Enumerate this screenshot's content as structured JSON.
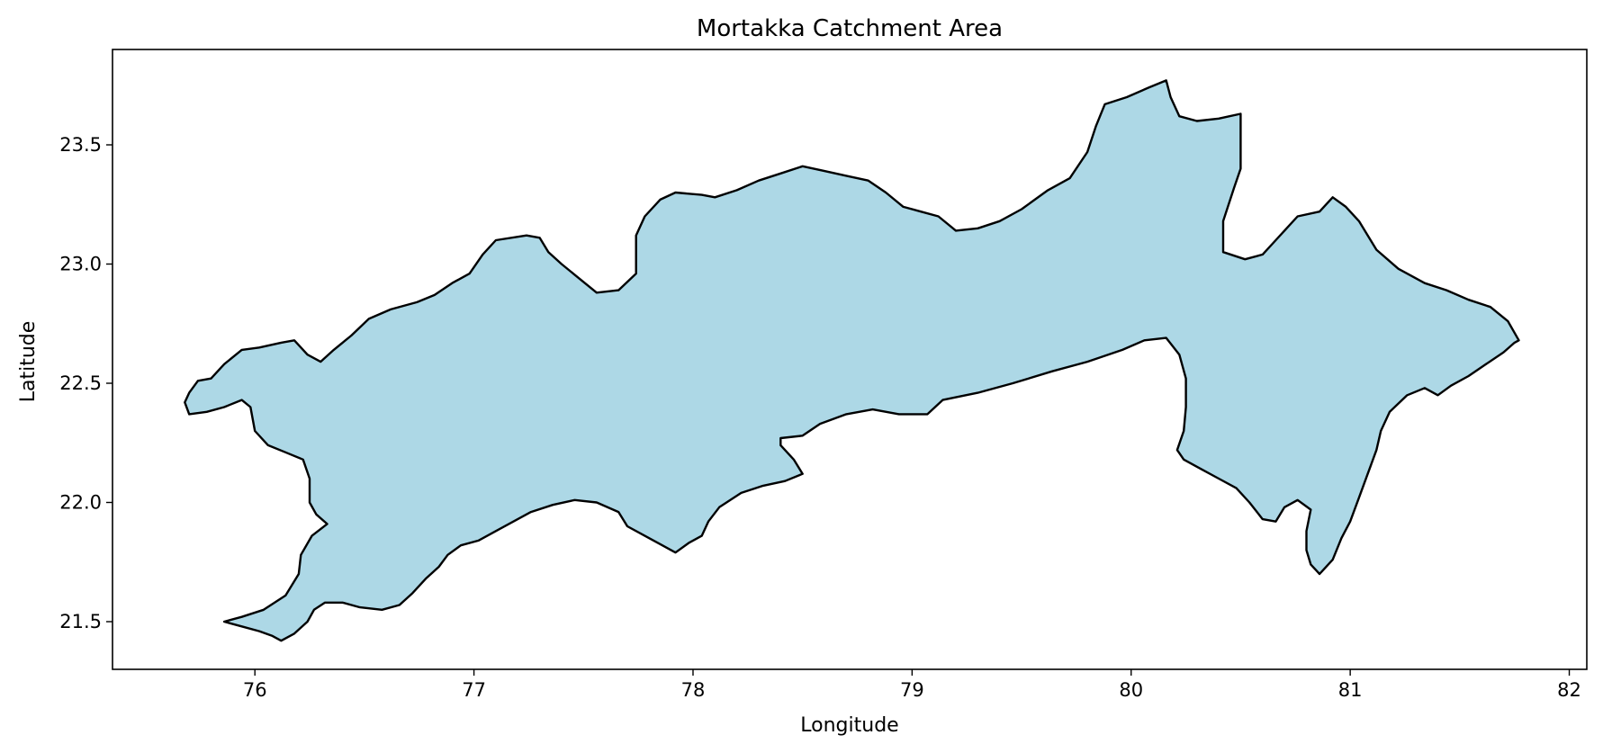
{
  "chart_data": {
    "type": "map",
    "title": "Mortakka Catchment Area",
    "xlabel": "Longitude",
    "ylabel": "Latitude",
    "xlim": [
      75.35,
      82.08
    ],
    "ylim": [
      21.3,
      23.9
    ],
    "x_ticks": [
      76,
      77,
      78,
      79,
      80,
      81,
      82
    ],
    "y_ticks": [
      21.5,
      22.0,
      22.5,
      23.0,
      23.5
    ],
    "x_tick_labels": [
      "76",
      "77",
      "78",
      "79",
      "80",
      "81",
      "82"
    ],
    "y_tick_labels": [
      "21.5",
      "22.0",
      "22.5",
      "23.0",
      "23.5"
    ],
    "grid": false,
    "colors": {
      "fill": "#add8e6",
      "edge": "#000000"
    },
    "polygon": [
      [
        75.86,
        21.5
      ],
      [
        75.94,
        21.48
      ],
      [
        76.02,
        21.46
      ],
      [
        76.08,
        21.44
      ],
      [
        76.12,
        21.42
      ],
      [
        76.18,
        21.45
      ],
      [
        76.24,
        21.5
      ],
      [
        76.27,
        21.55
      ],
      [
        76.32,
        21.58
      ],
      [
        76.4,
        21.58
      ],
      [
        76.48,
        21.56
      ],
      [
        76.58,
        21.55
      ],
      [
        76.66,
        21.57
      ],
      [
        76.72,
        21.62
      ],
      [
        76.78,
        21.68
      ],
      [
        76.84,
        21.73
      ],
      [
        76.88,
        21.78
      ],
      [
        76.94,
        21.82
      ],
      [
        77.02,
        21.84
      ],
      [
        77.1,
        21.88
      ],
      [
        77.18,
        21.92
      ],
      [
        77.26,
        21.96
      ],
      [
        77.36,
        21.99
      ],
      [
        77.46,
        22.01
      ],
      [
        77.56,
        22.0
      ],
      [
        77.66,
        21.96
      ],
      [
        77.7,
        21.9
      ],
      [
        77.78,
        21.86
      ],
      [
        77.86,
        21.82
      ],
      [
        77.92,
        21.79
      ],
      [
        77.98,
        21.83
      ],
      [
        78.04,
        21.86
      ],
      [
        78.07,
        21.92
      ],
      [
        78.12,
        21.98
      ],
      [
        78.22,
        22.04
      ],
      [
        78.32,
        22.07
      ],
      [
        78.42,
        22.09
      ],
      [
        78.5,
        22.12
      ],
      [
        78.46,
        22.18
      ],
      [
        78.4,
        22.24
      ],
      [
        78.4,
        22.27
      ],
      [
        78.5,
        22.28
      ],
      [
        78.58,
        22.33
      ],
      [
        78.7,
        22.37
      ],
      [
        78.82,
        22.39
      ],
      [
        78.94,
        22.37
      ],
      [
        79.07,
        22.37
      ],
      [
        79.14,
        22.43
      ],
      [
        79.3,
        22.46
      ],
      [
        79.46,
        22.5
      ],
      [
        79.64,
        22.55
      ],
      [
        79.8,
        22.59
      ],
      [
        79.96,
        22.64
      ],
      [
        80.06,
        22.68
      ],
      [
        80.16,
        22.69
      ],
      [
        80.22,
        22.62
      ],
      [
        80.25,
        22.52
      ],
      [
        80.25,
        22.4
      ],
      [
        80.24,
        22.3
      ],
      [
        80.21,
        22.22
      ],
      [
        80.24,
        22.18
      ],
      [
        80.32,
        22.14
      ],
      [
        80.4,
        22.1
      ],
      [
        80.48,
        22.06
      ],
      [
        80.54,
        22.0
      ],
      [
        80.6,
        21.93
      ],
      [
        80.66,
        21.92
      ],
      [
        80.7,
        21.98
      ],
      [
        80.76,
        22.01
      ],
      [
        80.82,
        21.97
      ],
      [
        80.8,
        21.88
      ],
      [
        80.8,
        21.8
      ],
      [
        80.82,
        21.74
      ],
      [
        80.86,
        21.7
      ],
      [
        80.92,
        21.76
      ],
      [
        80.96,
        21.85
      ],
      [
        81.0,
        21.92
      ],
      [
        81.04,
        22.02
      ],
      [
        81.08,
        22.12
      ],
      [
        81.12,
        22.22
      ],
      [
        81.14,
        22.3
      ],
      [
        81.18,
        22.38
      ],
      [
        81.26,
        22.45
      ],
      [
        81.34,
        22.48
      ],
      [
        81.4,
        22.45
      ],
      [
        81.46,
        22.49
      ],
      [
        81.54,
        22.53
      ],
      [
        81.62,
        22.58
      ],
      [
        81.7,
        22.63
      ],
      [
        81.75,
        22.67
      ],
      [
        81.77,
        22.68
      ],
      [
        81.72,
        22.76
      ],
      [
        81.64,
        22.82
      ],
      [
        81.54,
        22.85
      ],
      [
        81.44,
        22.89
      ],
      [
        81.34,
        22.92
      ],
      [
        81.22,
        22.98
      ],
      [
        81.12,
        23.06
      ],
      [
        81.04,
        23.18
      ],
      [
        80.98,
        23.24
      ],
      [
        80.92,
        23.28
      ],
      [
        80.86,
        23.22
      ],
      [
        80.76,
        23.2
      ],
      [
        80.7,
        23.14
      ],
      [
        80.66,
        23.1
      ],
      [
        80.6,
        23.04
      ],
      [
        80.52,
        23.02
      ],
      [
        80.42,
        23.05
      ],
      [
        80.42,
        23.18
      ],
      [
        80.47,
        23.32
      ],
      [
        80.5,
        23.4
      ],
      [
        80.5,
        23.52
      ],
      [
        80.5,
        23.63
      ],
      [
        80.4,
        23.61
      ],
      [
        80.3,
        23.6
      ],
      [
        80.22,
        23.62
      ],
      [
        80.18,
        23.7
      ],
      [
        80.16,
        23.77
      ],
      [
        80.08,
        23.74
      ],
      [
        79.98,
        23.7
      ],
      [
        79.88,
        23.67
      ],
      [
        79.84,
        23.58
      ],
      [
        79.8,
        23.47
      ],
      [
        79.72,
        23.36
      ],
      [
        79.62,
        23.31
      ],
      [
        79.5,
        23.23
      ],
      [
        79.4,
        23.18
      ],
      [
        79.3,
        23.15
      ],
      [
        79.2,
        23.14
      ],
      [
        79.12,
        23.2
      ],
      [
        79.04,
        23.22
      ],
      [
        78.96,
        23.24
      ],
      [
        78.88,
        23.3
      ],
      [
        78.8,
        23.35
      ],
      [
        78.7,
        23.37
      ],
      [
        78.6,
        23.39
      ],
      [
        78.5,
        23.41
      ],
      [
        78.4,
        23.38
      ],
      [
        78.3,
        23.35
      ],
      [
        78.2,
        23.31
      ],
      [
        78.1,
        23.28
      ],
      [
        78.04,
        23.29
      ],
      [
        77.92,
        23.3
      ],
      [
        77.85,
        23.27
      ],
      [
        77.78,
        23.2
      ],
      [
        77.74,
        23.12
      ],
      [
        77.74,
        23.04
      ],
      [
        77.74,
        22.96
      ],
      [
        77.66,
        22.89
      ],
      [
        77.56,
        22.88
      ],
      [
        77.48,
        22.94
      ],
      [
        77.4,
        23.0
      ],
      [
        77.34,
        23.05
      ],
      [
        77.3,
        23.11
      ],
      [
        77.24,
        23.12
      ],
      [
        77.1,
        23.1
      ],
      [
        77.04,
        23.04
      ],
      [
        76.98,
        22.96
      ],
      [
        76.9,
        22.92
      ],
      [
        76.82,
        22.87
      ],
      [
        76.74,
        22.84
      ],
      [
        76.62,
        22.81
      ],
      [
        76.52,
        22.77
      ],
      [
        76.44,
        22.7
      ],
      [
        76.36,
        22.64
      ],
      [
        76.3,
        22.59
      ],
      [
        76.24,
        22.62
      ],
      [
        76.18,
        22.68
      ],
      [
        76.12,
        22.67
      ],
      [
        76.02,
        22.65
      ],
      [
        75.94,
        22.64
      ],
      [
        75.86,
        22.58
      ],
      [
        75.8,
        22.52
      ],
      [
        75.74,
        22.51
      ],
      [
        75.7,
        22.46
      ],
      [
        75.68,
        22.42
      ],
      [
        75.7,
        22.37
      ],
      [
        75.78,
        22.38
      ],
      [
        75.86,
        22.4
      ],
      [
        75.94,
        22.43
      ],
      [
        75.98,
        22.4
      ],
      [
        76.0,
        22.3
      ],
      [
        76.06,
        22.24
      ],
      [
        76.14,
        22.21
      ],
      [
        76.22,
        22.18
      ],
      [
        76.25,
        22.1
      ],
      [
        76.25,
        22.0
      ],
      [
        76.28,
        21.95
      ],
      [
        76.33,
        21.91
      ],
      [
        76.26,
        21.86
      ],
      [
        76.21,
        21.78
      ],
      [
        76.2,
        21.7
      ],
      [
        76.14,
        21.61
      ],
      [
        76.04,
        21.55
      ],
      [
        75.94,
        21.52
      ],
      [
        75.86,
        21.5
      ]
    ]
  }
}
